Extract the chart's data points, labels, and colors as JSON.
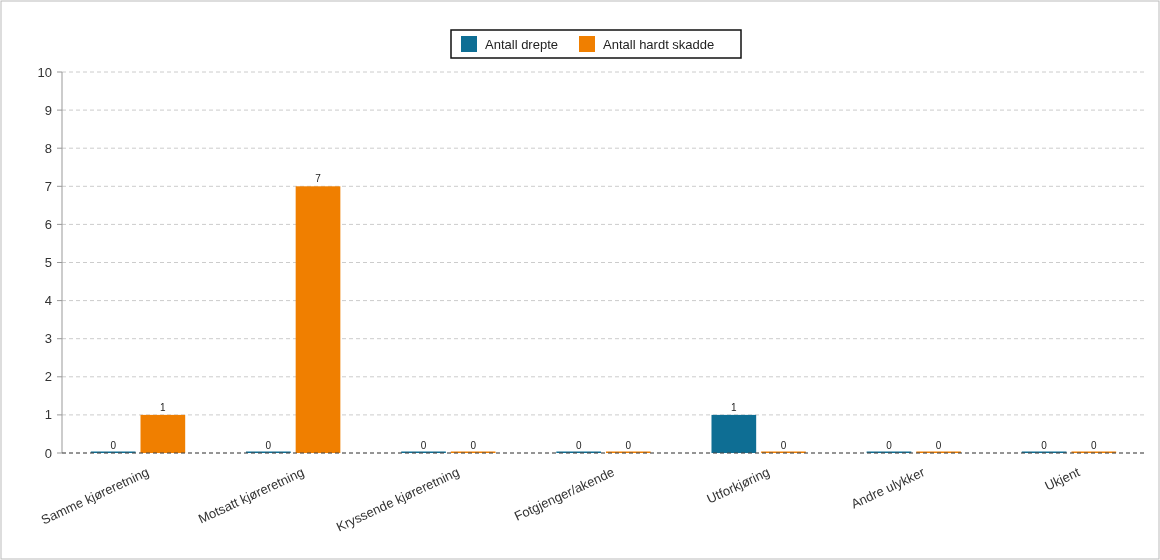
{
  "chart_data": {
    "type": "bar",
    "categories": [
      "Samme kjøreretning",
      "Motsatt kjøreretning",
      "Kryssende kjøreretning",
      "Fotgjenger/akende",
      "Utforkjøring",
      "Andre ulykker",
      "Ukjent"
    ],
    "series": [
      {
        "name": "Antall drepte",
        "color": "#0e6e94",
        "values": [
          0,
          0,
          0,
          0,
          1,
          0,
          0
        ]
      },
      {
        "name": "Antall hardt skadde",
        "color": "#f07f00",
        "values": [
          1,
          7,
          0,
          0,
          0,
          0,
          0
        ]
      }
    ],
    "ylim": [
      0,
      10
    ],
    "yticks": [
      0,
      1,
      2,
      3,
      4,
      5,
      6,
      7,
      8,
      9,
      10
    ],
    "grid": "y",
    "legend": "top",
    "data_labels": true
  }
}
